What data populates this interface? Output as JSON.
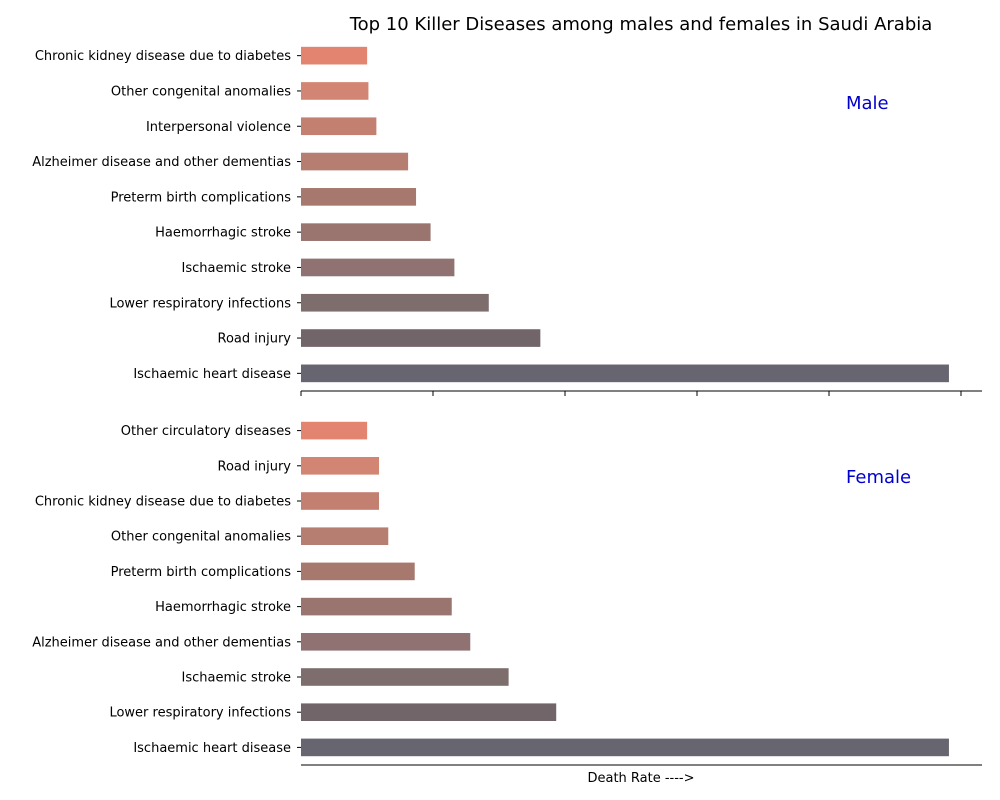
{
  "chart_data": {
    "title": "Top 10 Killer Diseases among males and females in Saudi Arabia",
    "xlabel": "Death Rate ---->",
    "colors": [
      "#666570",
      "#716569",
      "#7d6d6d",
      "#8f7271",
      "#9a7570",
      "#a6786e",
      "#b67e70",
      "#c37f6f",
      "#d38573",
      "#e2846f",
      "#ef8870"
    ],
    "panels": [
      {
        "type": "bar",
        "orientation": "horizontal",
        "label": "Male",
        "label_color": "#0000cc",
        "categories": [
          "Ischaemic heart disease",
          "Road injury",
          "Lower respiratory infections",
          "Ischaemic stroke",
          "Haemorrhagic stroke",
          "Preterm birth complications",
          "Alzheimer disease and other dementias",
          "Interpersonal violence",
          "Other congenital anomalies",
          "Chronic kidney disease due to diabetes"
        ],
        "values": [
          490,
          181,
          142,
          116,
          98,
          87,
          81,
          57,
          51,
          50
        ],
        "xlim": [
          0,
          515
        ]
      },
      {
        "type": "bar",
        "orientation": "horizontal",
        "label": "Female",
        "label_color": "#0000cc",
        "categories": [
          "Ischaemic heart disease",
          "Lower respiratory infections",
          "Ischaemic stroke",
          "Alzheimer disease and other dementias",
          "Haemorrhagic stroke",
          "Preterm birth complications",
          "Other congenital anomalies",
          "Chronic kidney disease due to diabetes",
          "Road injury",
          "Other circulatory diseases"
        ],
        "values": [
          490,
          193,
          157,
          128,
          114,
          86,
          66,
          59,
          59,
          50
        ],
        "xlim": [
          0,
          515
        ]
      }
    ]
  }
}
